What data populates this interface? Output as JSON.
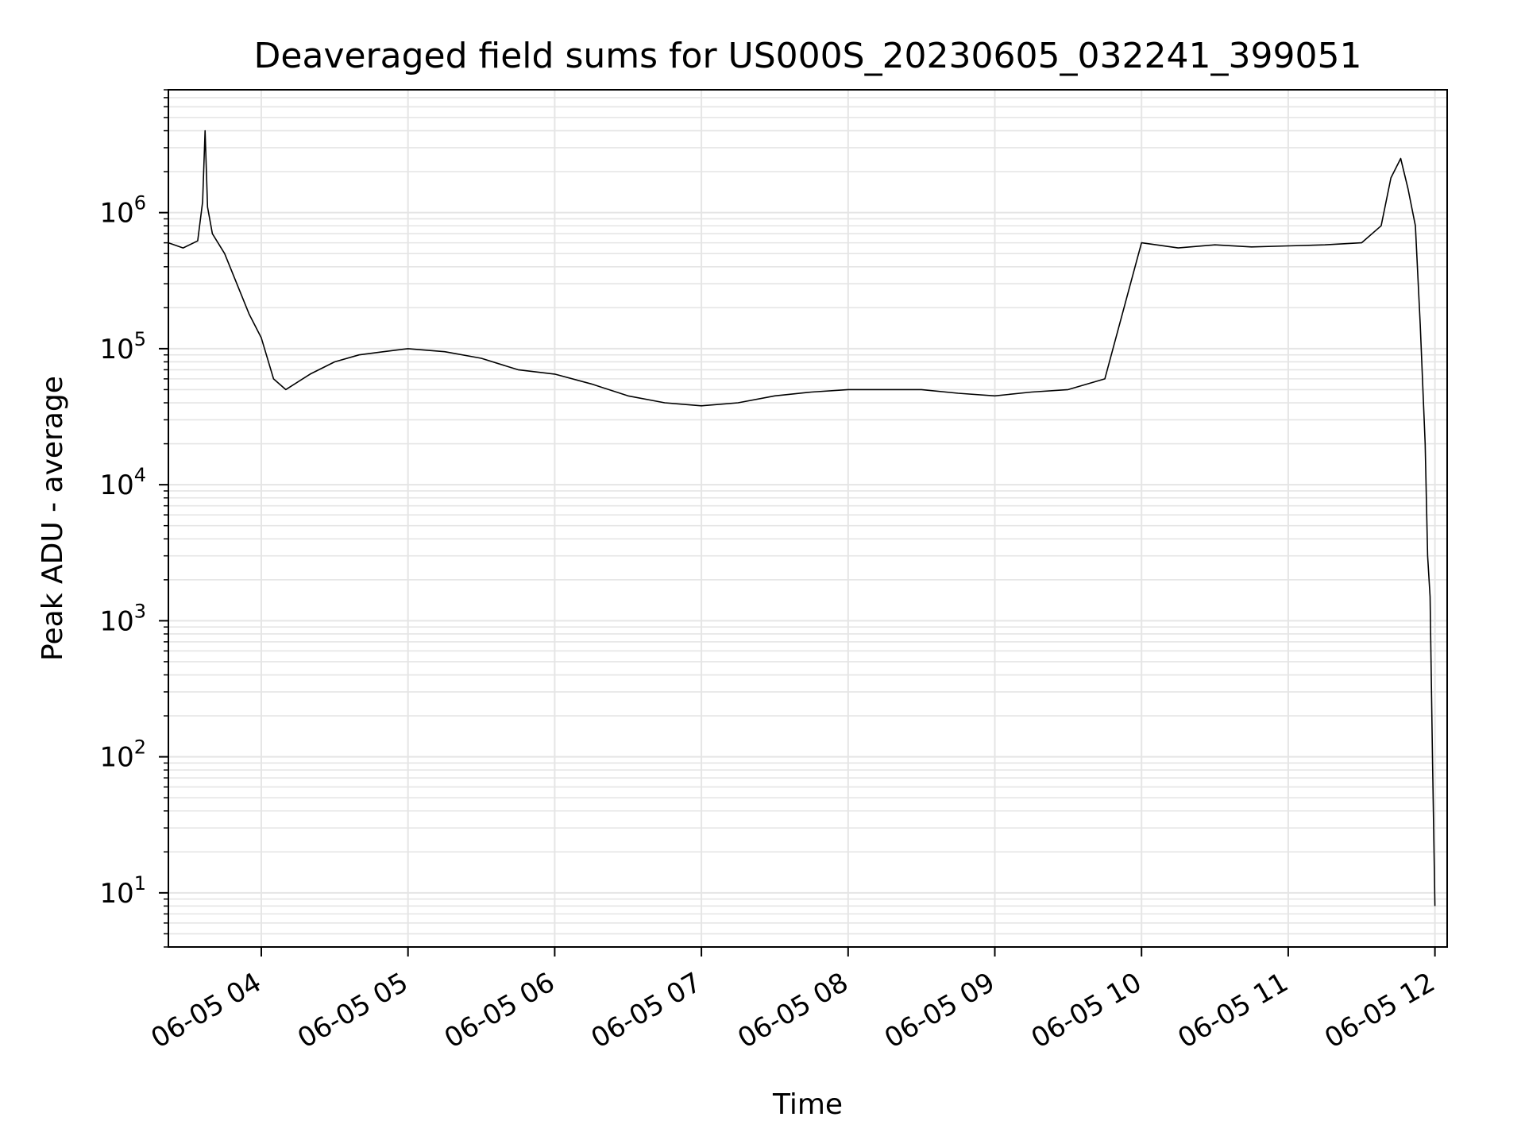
{
  "chart_data": {
    "type": "line",
    "title": "Deaveraged field sums for US000S_20230605_032241_399051",
    "xlabel": "Time",
    "ylabel": "Peak ADU - average",
    "x_scale": "time",
    "y_scale": "log",
    "xlim": [
      "06-05 03:22",
      "06-05 12:05"
    ],
    "ylim": [
      4,
      8000000
    ],
    "x_ticks": [
      {
        "value": "06-05 04:00",
        "label": "06-05 04"
      },
      {
        "value": "06-05 05:00",
        "label": "06-05 05"
      },
      {
        "value": "06-05 06:00",
        "label": "06-05 06"
      },
      {
        "value": "06-05 07:00",
        "label": "06-05 07"
      },
      {
        "value": "06-05 08:00",
        "label": "06-05 08"
      },
      {
        "value": "06-05 09:00",
        "label": "06-05 09"
      },
      {
        "value": "06-05 10:00",
        "label": "06-05 10"
      },
      {
        "value": "06-05 11:00",
        "label": "06-05 11"
      },
      {
        "value": "06-05 12:00",
        "label": "06-05 12"
      }
    ],
    "y_ticks": [
      {
        "value": 10,
        "base": "10",
        "exp": "1"
      },
      {
        "value": 100,
        "base": "10",
        "exp": "2"
      },
      {
        "value": 1000,
        "base": "10",
        "exp": "3"
      },
      {
        "value": 10000,
        "base": "10",
        "exp": "4"
      },
      {
        "value": 100000,
        "base": "10",
        "exp": "5"
      },
      {
        "value": 1000000,
        "base": "10",
        "exp": "6"
      }
    ],
    "grid": true,
    "line_color": "#000000",
    "grid_color": "#e5e5e5",
    "series": [
      {
        "x": [
          "06-05 03:22",
          "06-05 03:28",
          "06-05 03:34",
          "06-05 03:36",
          "06-05 03:37",
          "06-05 03:38",
          "06-05 03:40",
          "06-05 03:45",
          "06-05 03:50",
          "06-05 03:55",
          "06-05 04:00",
          "06-05 04:05",
          "06-05 04:10",
          "06-05 04:20",
          "06-05 04:30",
          "06-05 04:40",
          "06-05 04:50",
          "06-05 05:00",
          "06-05 05:15",
          "06-05 05:30",
          "06-05 05:45",
          "06-05 06:00",
          "06-05 06:15",
          "06-05 06:30",
          "06-05 06:45",
          "06-05 07:00",
          "06-05 07:15",
          "06-05 07:30",
          "06-05 07:45",
          "06-05 08:00",
          "06-05 08:15",
          "06-05 08:30",
          "06-05 08:45",
          "06-05 09:00",
          "06-05 09:15",
          "06-05 09:30",
          "06-05 09:45",
          "06-05 10:00",
          "06-05 10:15",
          "06-05 10:30",
          "06-05 10:45",
          "06-05 11:00",
          "06-05 11:15",
          "06-05 11:30",
          "06-05 11:38",
          "06-05 11:42",
          "06-05 11:46",
          "06-05 11:49",
          "06-05 11:52",
          "06-05 11:54",
          "06-05 11:56",
          "06-05 11:57",
          "06-05 11:58",
          "06-05 11:59",
          "06-05 12:00"
        ],
        "y": [
          600000,
          550000,
          620000,
          1200000,
          4000000,
          1100000,
          700000,
          500000,
          300000,
          180000,
          120000,
          60000,
          50000,
          65000,
          80000,
          90000,
          95000,
          100000,
          95000,
          85000,
          70000,
          65000,
          55000,
          45000,
          40000,
          38000,
          40000,
          45000,
          48000,
          50000,
          50000,
          50000,
          47000,
          45000,
          48000,
          50000,
          60000,
          600000,
          550000,
          580000,
          560000,
          570000,
          580000,
          600000,
          800000,
          1800000,
          2500000,
          1500000,
          800000,
          150000,
          20000,
          3000,
          1500,
          100,
          8
        ]
      }
    ]
  }
}
